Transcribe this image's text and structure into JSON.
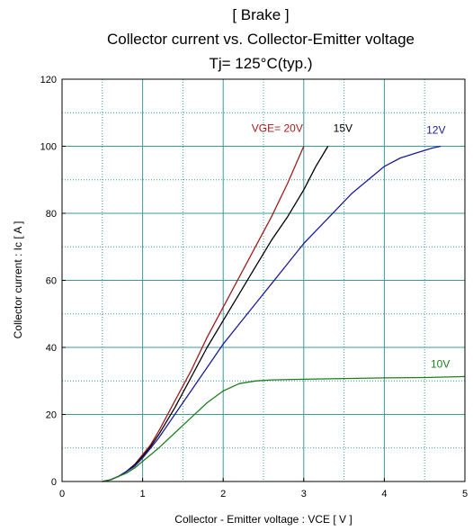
{
  "chart_data": {
    "type": "line",
    "title_lines": [
      "[ Brake ]",
      "Collector current  vs.  Collector-Emitter voltage",
      "Tj= 125°C(typ.)"
    ],
    "xlabel": "Collector - Emitter voltage  :  VCE  [ V ]",
    "ylabel": "Collector current  :  Ic  [ A ]",
    "xlim": [
      0,
      5
    ],
    "ylim": [
      0,
      120
    ],
    "x_ticks": [
      0,
      1,
      2,
      3,
      4,
      5
    ],
    "y_ticks": [
      0,
      20,
      40,
      60,
      80,
      100,
      120
    ],
    "grid": true,
    "series": [
      {
        "name": "VGE= 20V",
        "color": "#a01c1c",
        "x": [
          0.5,
          0.6,
          0.7,
          0.8,
          0.9,
          1.0,
          1.1,
          1.2,
          1.4,
          1.6,
          1.8,
          2.0,
          2.2,
          2.4,
          2.6,
          2.8,
          3.0
        ],
        "y": [
          0,
          0.5,
          1.5,
          3,
          5,
          8,
          11,
          15,
          24,
          33,
          43,
          52,
          61,
          70,
          79,
          89,
          100
        ]
      },
      {
        "name": "15V",
        "color": "#000000",
        "x": [
          0.5,
          0.6,
          0.7,
          0.8,
          0.9,
          1.0,
          1.1,
          1.2,
          1.4,
          1.6,
          1.8,
          2.0,
          2.2,
          2.4,
          2.6,
          2.8,
          3.0,
          3.15,
          3.3
        ],
        "y": [
          0,
          0.5,
          1.5,
          3,
          5,
          7.5,
          10.5,
          14,
          22,
          31,
          40,
          48,
          56,
          64,
          72,
          79,
          87,
          94,
          100
        ]
      },
      {
        "name": "12V",
        "color": "#1c1c99",
        "x": [
          0.5,
          0.6,
          0.7,
          0.8,
          0.9,
          1.0,
          1.1,
          1.2,
          1.4,
          1.6,
          1.8,
          2.0,
          2.2,
          2.4,
          2.6,
          2.8,
          3.0,
          3.2,
          3.4,
          3.6,
          3.8,
          4.0,
          4.2,
          4.4,
          4.6,
          4.7
        ],
        "y": [
          0,
          0.5,
          1.5,
          3,
          4.5,
          7,
          10,
          13,
          20,
          27,
          34,
          41,
          47,
          53,
          59,
          65,
          71,
          76,
          81,
          86,
          90,
          94,
          96.5,
          98,
          99.5,
          100
        ]
      },
      {
        "name": "10V",
        "color": "#1e7f1e",
        "x": [
          0.5,
          0.6,
          0.7,
          0.8,
          0.9,
          1.0,
          1.1,
          1.2,
          1.4,
          1.6,
          1.8,
          2.0,
          2.2,
          2.4,
          2.6,
          3.0,
          3.5,
          4.0,
          4.5,
          5.0
        ],
        "y": [
          0,
          0.5,
          1.5,
          2.5,
          4,
          6,
          8,
          10,
          14.5,
          19,
          23.5,
          27,
          29.2,
          30,
          30.3,
          30.5,
          30.7,
          30.9,
          31,
          31.3
        ]
      }
    ]
  }
}
